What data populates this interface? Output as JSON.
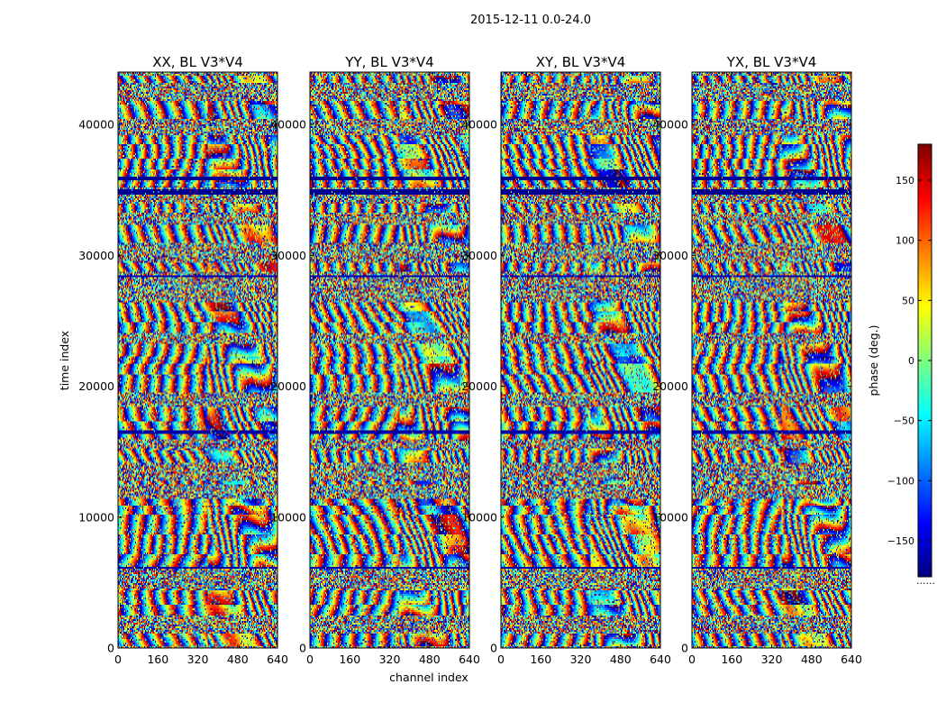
{
  "figure": {
    "suptitle": "2015-12-11 0.0-24.0",
    "xlabel": "channel index",
    "ylabel": "time index",
    "colorbar_label": "phase (deg.)",
    "colorbar_ticks": [
      150,
      100,
      50,
      0,
      -50,
      -100,
      -150
    ],
    "colorbar_tick_labels": [
      "150",
      "100",
      "50",
      "0",
      "−50",
      "−100",
      "−150"
    ],
    "colorbar_range": [
      -180,
      180
    ],
    "colorbar_footer": "......",
    "colormap": "jet",
    "colormap_stops": [
      "#00007f",
      "#0000ff",
      "#007fff",
      "#00ffff",
      "#7fff7f",
      "#ffff00",
      "#ff7f00",
      "#ff0000",
      "#7f0000"
    ]
  },
  "chart_data": [
    {
      "type": "heatmap",
      "title": "XX, BL V3*V4",
      "xlabel": "",
      "ylabel": "time index",
      "xlim": [
        0,
        640
      ],
      "ylim": [
        0,
        44000
      ],
      "xticks": [
        0,
        160,
        320,
        480,
        640
      ],
      "yticks": [
        0,
        10000,
        20000,
        30000,
        40000
      ],
      "xtick_labels": [
        "0",
        "160",
        "320",
        "480",
        "640"
      ],
      "ytick_labels": [
        "0",
        "10000",
        "20000",
        "30000",
        "40000"
      ],
      "value_range": [
        -180,
        180
      ],
      "value_label": "phase (deg.)"
    },
    {
      "type": "heatmap",
      "title": "YY, BL V3*V4",
      "xlabel": "channel index",
      "ylabel": "",
      "xlim": [
        0,
        640
      ],
      "ylim": [
        0,
        44000
      ],
      "xticks": [
        0,
        160,
        320,
        480,
        640
      ],
      "yticks": [
        0,
        10000,
        20000,
        30000,
        40000
      ],
      "xtick_labels": [
        "0",
        "160",
        "320",
        "480",
        "640"
      ],
      "ytick_labels": [
        "0",
        "10000",
        "20000",
        "30000",
        "40000"
      ],
      "value_range": [
        -180,
        180
      ],
      "value_label": "phase (deg.)"
    },
    {
      "type": "heatmap",
      "title": "XY, BL V3*V4",
      "xlabel": "",
      "ylabel": "",
      "xlim": [
        0,
        640
      ],
      "ylim": [
        0,
        44000
      ],
      "xticks": [
        0,
        160,
        320,
        480,
        640
      ],
      "yticks": [
        0,
        10000,
        20000,
        30000,
        40000
      ],
      "xtick_labels": [
        "0",
        "160",
        "320",
        "480",
        "640"
      ],
      "ytick_labels": [
        "0",
        "10000",
        "20000",
        "30000",
        "40000"
      ],
      "value_range": [
        -180,
        180
      ],
      "value_label": "phase (deg.)"
    },
    {
      "type": "heatmap",
      "title": "YX, BL V3*V4",
      "xlabel": "",
      "ylabel": "",
      "xlim": [
        0,
        640
      ],
      "ylim": [
        0,
        44000
      ],
      "xticks": [
        0,
        160,
        320,
        480,
        640
      ],
      "yticks": [
        0,
        10000,
        20000,
        30000,
        40000
      ],
      "xtick_labels": [
        "0",
        "160",
        "320",
        "480",
        "640"
      ],
      "ytick_labels": [
        "0",
        "10000",
        "20000",
        "30000",
        "40000"
      ],
      "value_range": [
        -180,
        180
      ],
      "value_label": "phase (deg.)"
    }
  ]
}
